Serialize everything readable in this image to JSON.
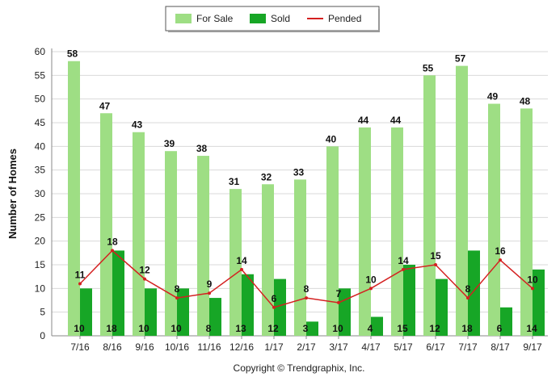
{
  "chart_data": {
    "type": "bar",
    "ylabel": "Number of Homes",
    "ylim": [
      0,
      60
    ],
    "yticks": [
      0,
      5,
      10,
      15,
      20,
      25,
      30,
      35,
      40,
      45,
      50,
      55,
      60
    ],
    "grid": true,
    "legend_position": "top-center",
    "categories": [
      "7/16",
      "8/16",
      "9/16",
      "10/16",
      "11/16",
      "12/16",
      "1/17",
      "2/17",
      "3/17",
      "4/17",
      "5/17",
      "6/17",
      "7/17",
      "8/17",
      "9/17"
    ],
    "series": [
      {
        "name": "For Sale",
        "kind": "bar",
        "color": "#9ede84",
        "values": [
          58,
          47,
          43,
          39,
          38,
          31,
          32,
          33,
          40,
          44,
          44,
          55,
          57,
          49,
          48
        ]
      },
      {
        "name": "Sold",
        "kind": "bar",
        "color": "#17a626",
        "values": [
          10,
          18,
          10,
          10,
          8,
          13,
          12,
          3,
          10,
          4,
          15,
          12,
          18,
          6,
          14
        ]
      },
      {
        "name": "Pended",
        "kind": "line",
        "color": "#d42020",
        "values": [
          11,
          18,
          12,
          8,
          9,
          14,
          6,
          8,
          7,
          10,
          14,
          15,
          8,
          16,
          10
        ]
      }
    ],
    "footer": "Copyright © Trendgraphix, Inc."
  }
}
